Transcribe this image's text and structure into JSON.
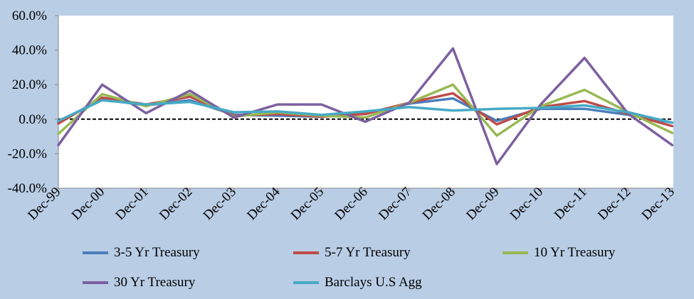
{
  "chart_data": {
    "type": "line",
    "title": "",
    "xlabel": "",
    "ylabel": "",
    "categories": [
      "Dec-99",
      "Dec-00",
      "Dec-01",
      "Dec-02",
      "Dec-03",
      "Dec-04",
      "Dec-05",
      "Dec-06",
      "Dec-07",
      "Dec-08",
      "Dec-09",
      "Dec-10",
      "Dec-11",
      "Dec-12",
      "Dec-13"
    ],
    "y_ticks": [
      "60.0%",
      "40.0%",
      "20.0%",
      "0.0%",
      "-20.0%",
      "-40.0%"
    ],
    "ylim": [
      -40,
      60
    ],
    "zero_line": "dashed",
    "grid": false,
    "legend_position": "bottom",
    "series": [
      {
        "name": "3-5 Yr Treasury",
        "color": "#4a7ebb",
        "values": [
          -1.5,
          11.5,
          8.0,
          11.0,
          2.5,
          2.0,
          1.5,
          3.5,
          9.0,
          12.0,
          -1.0,
          6.0,
          6.0,
          2.5,
          -2.0
        ]
      },
      {
        "name": "5-7 Yr Treasury",
        "color": "#be4b48",
        "values": [
          -2.5,
          12.5,
          8.5,
          13.0,
          2.0,
          3.0,
          1.5,
          3.0,
          9.5,
          15.0,
          -3.0,
          7.0,
          10.5,
          3.0,
          -4.0
        ]
      },
      {
        "name": "10 Yr Treasury",
        "color": "#98b954",
        "values": [
          -8.5,
          14.5,
          7.5,
          14.5,
          1.5,
          4.0,
          2.0,
          1.0,
          9.5,
          20.0,
          -9.5,
          7.5,
          17.0,
          4.0,
          -8.0
        ]
      },
      {
        "name": "30 Yr Treasury",
        "color": "#7d60a0",
        "values": [
          -15.0,
          20.0,
          3.5,
          16.5,
          1.0,
          8.5,
          8.5,
          -1.5,
          9.5,
          41.0,
          -26.0,
          8.5,
          35.5,
          3.0,
          -15.0
        ]
      },
      {
        "name": "Barclays U.S Agg",
        "color": "#46aac5",
        "values": [
          -1.0,
          11.0,
          8.5,
          10.0,
          4.0,
          4.5,
          2.5,
          4.5,
          7.0,
          5.0,
          6.0,
          6.5,
          8.0,
          4.0,
          -2.0
        ]
      }
    ]
  }
}
